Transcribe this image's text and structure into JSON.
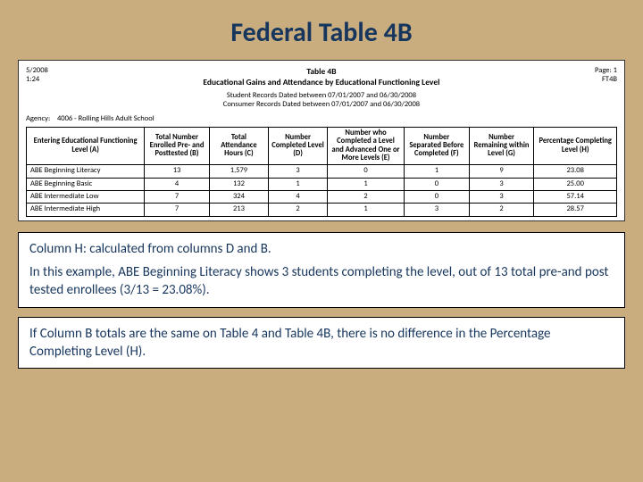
{
  "slide": {
    "title": "Federal Table 4B"
  },
  "panel": {
    "meta_left_top": "5/2008",
    "meta_left_bot": "1:24",
    "meta_right_top": "Page: 1",
    "meta_right_bot": "FT4B",
    "table_no": "Table 4B",
    "table_subtitle": "Educational Gains and Attendance by Educational Functioning Level",
    "dates_line1": "Student Records Dated between 07/01/2007 and 06/30/2008",
    "dates_line2": "Consumer Records Dated between 07/01/2007 and 06/30/2008",
    "agency_label": "Agency:",
    "agency_value": "4006 - Rolling Hills Adult School"
  },
  "table": {
    "headers": {
      "A": "Entering Educational Functioning Level (A)",
      "B": "Total Number Enrolled Pre- and Posttested (B)",
      "C": "Total Attendance Hours (C)",
      "D": "Number Completed Level (D)",
      "E": "Number who Completed a Level and Advanced One or More Levels (E)",
      "F": "Number Separated Before Completed (F)",
      "G": "Number Remaining within Level (G)",
      "H": "Percentage Completing Level (H)"
    },
    "rows": [
      {
        "label": "ABE Beginning Literacy",
        "B": "13",
        "C": "1,579",
        "D": "3",
        "E": "0",
        "F": "1",
        "G": "9",
        "H": "23.08"
      },
      {
        "label": "ABE Beginning Basic",
        "B": "4",
        "C": "132",
        "D": "1",
        "E": "1",
        "F": "0",
        "G": "3",
        "H": "25.00"
      },
      {
        "label": "ABE Intermediate Low",
        "B": "7",
        "C": "324",
        "D": "4",
        "E": "2",
        "F": "0",
        "G": "3",
        "H": "57.14"
      },
      {
        "label": "ABE Intermediate High",
        "B": "7",
        "C": "213",
        "D": "2",
        "E": "1",
        "F": "3",
        "G": "2",
        "H": "28.57"
      }
    ],
    "col_widths_pct": [
      20,
      11,
      10,
      10,
      13,
      11,
      11,
      14
    ],
    "highlight_column_index": 7,
    "border_color": "#000000",
    "background_color": "#ffffff",
    "font_size_pt": 8.5
  },
  "explain1": {
    "lead": "Column H: calculated from columns D and B.",
    "body": "In this example, ABE Beginning Literacy shows 3 students completing the level, out of 13 total pre-and post tested enrollees (3/13 = 23.08%)."
  },
  "explain2": {
    "body": "If Column B totals are the same on Table 4 and Table 4B, there is no difference in the Percentage Completing Level (H)."
  },
  "colors": {
    "slide_bg": "#c9ad7f",
    "heading_text": "#17365d",
    "box_bg": "#ffffff",
    "border": "#000000"
  }
}
